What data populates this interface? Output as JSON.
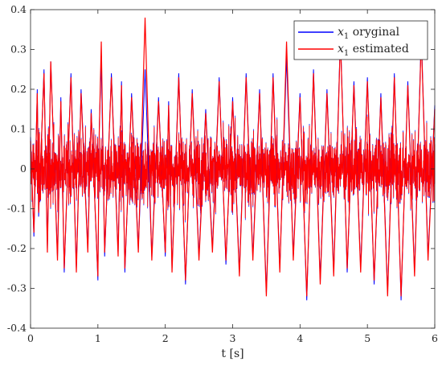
{
  "chart_data": {
    "type": "line",
    "title": "",
    "xlabel": "t [s]",
    "ylabel": "",
    "xlim": [
      0,
      6
    ],
    "ylim": [
      -0.4,
      0.4
    ],
    "xticks": [
      0,
      1,
      2,
      3,
      4,
      5,
      6
    ],
    "xtick_labels": [
      "0",
      "1",
      "2",
      "3",
      "4",
      "5",
      "6"
    ],
    "yticks": [
      -0.4,
      -0.3,
      -0.2,
      -0.1,
      0,
      0.1,
      0.2,
      0.3,
      0.4
    ],
    "ytick_labels": [
      "-0.4",
      "-0.3",
      "-0.2",
      "-0.1",
      "0",
      "0.1",
      "0.2",
      "0.3",
      "0.4"
    ],
    "grid": false,
    "legend_position": "top-right",
    "series": [
      {
        "name": "x₁ oryginal",
        "color": "#0000ff",
        "x": [
          0,
          0.05,
          0.1,
          0.12,
          0.2,
          0.25,
          0.3,
          0.4,
          0.45,
          0.5,
          0.6,
          0.68,
          0.75,
          0.85,
          0.9,
          1.0,
          1.02,
          1.05,
          1.1,
          1.2,
          1.3,
          1.35,
          1.4,
          1.5,
          1.6,
          1.7,
          1.8,
          1.9,
          2.0,
          2.05,
          2.1,
          2.2,
          2.3,
          2.4,
          2.5,
          2.6,
          2.7,
          2.8,
          2.9,
          3.0,
          3.1,
          3.2,
          3.3,
          3.4,
          3.5,
          3.6,
          3.7,
          3.8,
          3.9,
          4.0,
          4.1,
          4.2,
          4.3,
          4.4,
          4.5,
          4.6,
          4.7,
          4.8,
          4.9,
          5.0,
          5.1,
          5.2,
          5.3,
          5.4,
          5.5,
          5.6,
          5.7,
          5.8,
          5.9,
          6.0
        ],
        "y": [
          0.08,
          -0.17,
          0.2,
          -0.12,
          0.25,
          -0.2,
          0.27,
          -0.22,
          0.18,
          -0.26,
          0.24,
          -0.25,
          0.2,
          -0.2,
          0.15,
          -0.28,
          0.1,
          0.27,
          -0.22,
          0.24,
          -0.21,
          0.22,
          -0.26,
          0.19,
          -0.2,
          0.25,
          -0.22,
          0.18,
          -0.22,
          0.17,
          -0.25,
          0.24,
          -0.29,
          0.2,
          -0.22,
          0.15,
          -0.2,
          0.23,
          -0.24,
          0.18,
          -0.26,
          0.24,
          -0.22,
          0.2,
          -0.31,
          0.24,
          -0.25,
          0.28,
          -0.22,
          0.19,
          -0.33,
          0.25,
          -0.28,
          0.2,
          -0.26,
          0.34,
          -0.26,
          0.22,
          -0.25,
          0.23,
          -0.29,
          0.19,
          -0.31,
          0.24,
          -0.33,
          0.22,
          -0.26,
          0.34,
          -0.22,
          0.16
        ]
      },
      {
        "name": "x₁ estimated",
        "color": "#ff0000",
        "x": [
          0,
          0.05,
          0.1,
          0.12,
          0.2,
          0.25,
          0.3,
          0.4,
          0.45,
          0.5,
          0.6,
          0.68,
          0.75,
          0.85,
          0.9,
          1.0,
          1.02,
          1.05,
          1.1,
          1.2,
          1.3,
          1.35,
          1.4,
          1.5,
          1.6,
          1.7,
          1.8,
          1.9,
          2.0,
          2.05,
          2.1,
          2.2,
          2.3,
          2.4,
          2.5,
          2.6,
          2.7,
          2.8,
          2.9,
          3.0,
          3.1,
          3.2,
          3.3,
          3.4,
          3.5,
          3.6,
          3.7,
          3.8,
          3.9,
          4.0,
          4.1,
          4.2,
          4.3,
          4.4,
          4.5,
          4.6,
          4.7,
          4.8,
          4.9,
          5.0,
          5.1,
          5.2,
          5.3,
          5.4,
          5.5,
          5.6,
          5.7,
          5.8,
          5.9,
          6.0
        ],
        "y": [
          0.07,
          -0.16,
          0.19,
          -0.11,
          0.24,
          -0.21,
          0.27,
          -0.23,
          0.17,
          -0.25,
          0.23,
          -0.26,
          0.19,
          -0.21,
          0.14,
          -0.27,
          0.09,
          0.32,
          -0.21,
          0.23,
          -0.22,
          0.21,
          -0.25,
          0.18,
          -0.21,
          0.38,
          -0.23,
          0.17,
          -0.21,
          0.16,
          -0.26,
          0.23,
          -0.28,
          0.19,
          -0.23,
          0.14,
          -0.21,
          0.22,
          -0.23,
          0.17,
          -0.27,
          0.23,
          -0.23,
          0.19,
          -0.32,
          0.23,
          -0.26,
          0.32,
          -0.23,
          0.18,
          -0.32,
          0.24,
          -0.29,
          0.19,
          -0.27,
          0.33,
          -0.25,
          0.21,
          -0.26,
          0.22,
          -0.28,
          0.18,
          -0.32,
          0.23,
          -0.32,
          0.21,
          -0.27,
          0.33,
          -0.23,
          0.15
        ]
      }
    ]
  },
  "legend": {
    "entries": [
      {
        "var": "x",
        "sub": "1",
        "label": " oryginal"
      },
      {
        "var": "x",
        "sub": "1",
        "label": " estimated"
      }
    ]
  }
}
